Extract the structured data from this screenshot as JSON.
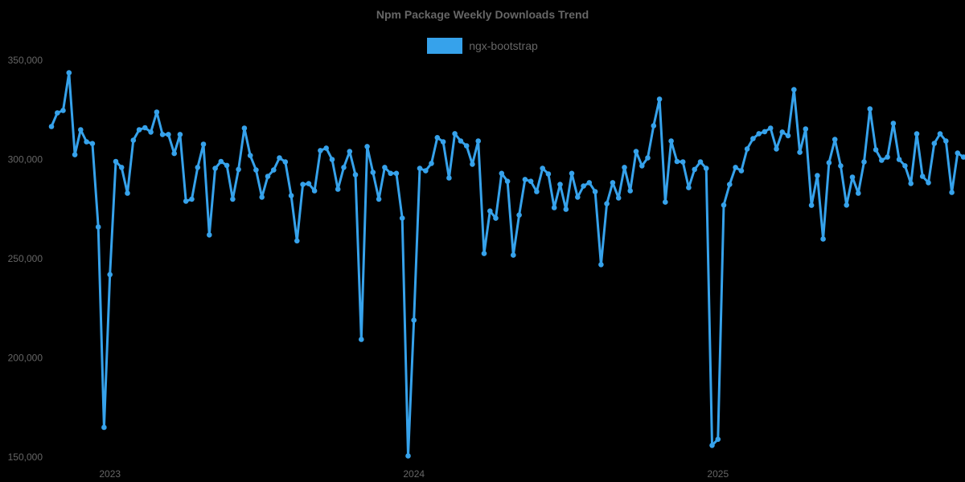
{
  "chart_data": {
    "type": "line",
    "title": "Npm Package Weekly Downloads Trend",
    "xlabel": "",
    "ylabel": "",
    "ylim": [
      150000,
      350000
    ],
    "y_ticks": [
      {
        "value": 350000,
        "label": "350,000"
      },
      {
        "value": 300000,
        "label": "300,000"
      },
      {
        "value": 250000,
        "label": "250,000"
      },
      {
        "value": 200000,
        "label": "200,000"
      },
      {
        "value": 150000,
        "label": "150,000"
      }
    ],
    "x_ticks": [
      {
        "index": 10,
        "label": "2023"
      },
      {
        "index": 62,
        "label": "2024"
      },
      {
        "index": 114,
        "label": "2025"
      }
    ],
    "grid": false,
    "legend_position": "top",
    "series": [
      {
        "name": "ngx-bootstrap",
        "color": "#36a2eb",
        "values": [
          316600,
          323500,
          324700,
          343700,
          302400,
          315000,
          308900,
          308000,
          266000,
          165000,
          242000,
          299000,
          296000,
          283000,
          309700,
          315000,
          316000,
          313800,
          323900,
          312600,
          312600,
          303000,
          312600,
          279000,
          280000,
          296000,
          307700,
          262000,
          295500,
          299000,
          297000,
          280000,
          295000,
          315800,
          302000,
          294700,
          281000,
          291500,
          294700,
          300800,
          298800,
          281800,
          259000,
          287400,
          287800,
          284200,
          304500,
          305700,
          300000,
          285000,
          296000,
          304000,
          292300,
          209300,
          306500,
          293500,
          280000,
          296000,
          293000,
          293000,
          270400,
          150600,
          219000,
          295500,
          294300,
          298000,
          311000,
          308900,
          290700,
          313000,
          309300,
          306900,
          297600,
          309300,
          252600,
          274000,
          270400,
          293000,
          289000,
          251800,
          272000,
          289900,
          289000,
          283800,
          295500,
          292700,
          275700,
          287400,
          274900,
          293000,
          281000,
          286600,
          288300,
          283800,
          247000,
          277700,
          288300,
          280600,
          296000,
          284200,
          304000,
          296800,
          300800,
          317000,
          330400,
          278500,
          309300,
          299000,
          298800,
          285800,
          295000,
          298800,
          295500,
          155900,
          159000,
          277000,
          287400,
          296000,
          294300,
          305300,
          310500,
          313000,
          314000,
          315800,
          305300,
          313800,
          312000,
          335200,
          303600,
          315400,
          276900,
          291900,
          259900,
          298400,
          310100,
          296800,
          277000,
          291100,
          283000,
          298800,
          325500,
          304900,
          299600,
          301200,
          318200,
          300000,
          296800,
          287900,
          312900,
          291500,
          288300,
          308100,
          312900,
          309300,
          283400,
          303200,
          301200
        ]
      }
    ]
  },
  "legend": {
    "items": [
      {
        "label": "ngx-bootstrap",
        "color": "#36a2eb"
      }
    ]
  },
  "colors": {
    "background": "#000000",
    "text": "#666666",
    "line": "#36a2eb"
  }
}
